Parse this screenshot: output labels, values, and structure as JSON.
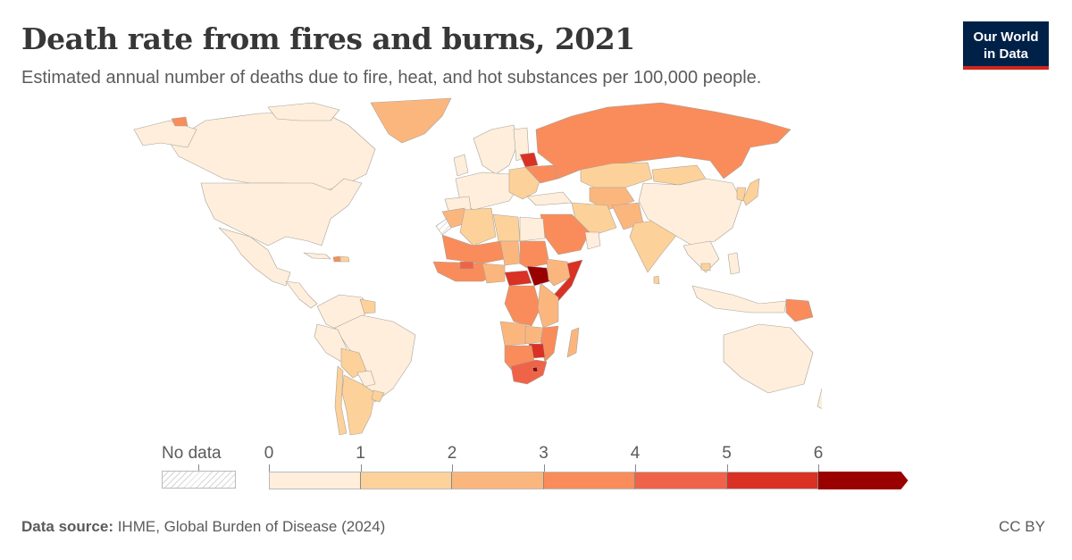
{
  "header": {
    "title": "Death rate from fires and burns, 2021",
    "subtitle": "Estimated annual number of deaths due to fire, heat, and hot substances per 100,000 people.",
    "logo_line1": "Our World",
    "logo_line2": "in Data"
  },
  "colors": {
    "brand_navy": "#002147",
    "brand_red": "#ce261e",
    "bins": [
      "#feeedb",
      "#fdd19a",
      "#fbb67e",
      "#f98c5a",
      "#ef6448",
      "#d93124",
      "#9a0000"
    ],
    "nodata": "#d6d6d6",
    "border": "#a8a39b"
  },
  "legend": {
    "nodata_label": "No data",
    "ticks": [
      "0",
      "1",
      "2",
      "3",
      "4",
      "5",
      "6"
    ],
    "bins": [
      {
        "range": "0–1",
        "color": "#feeedb"
      },
      {
        "range": "1–2",
        "color": "#fdd19a"
      },
      {
        "range": "2–3",
        "color": "#fbb67e"
      },
      {
        "range": "3–4",
        "color": "#f98c5a"
      },
      {
        "range": "4–5",
        "color": "#ef6448"
      },
      {
        "range": "5–6",
        "color": "#d93124"
      },
      {
        "range": ">6",
        "color": "#9a0000"
      }
    ]
  },
  "footer": {
    "source_label": "Data source:",
    "source_value": " IHME, Global Burden of Disease (2024)",
    "license": "CC BY"
  },
  "chart_data": {
    "type": "choropleth",
    "title": "Death rate from fires and burns, 2021",
    "subtitle": "Estimated annual number of deaths due to fire, heat, and hot substances per 100,000 people.",
    "unit": "deaths per 100,000 people",
    "year": 2021,
    "legend_bins": [
      [
        0,
        1
      ],
      [
        1,
        2
      ],
      [
        2,
        3
      ],
      [
        3,
        4
      ],
      [
        4,
        5
      ],
      [
        5,
        6
      ],
      [
        6,
        null
      ]
    ],
    "legend_ticks": [
      0,
      1,
      2,
      3,
      4,
      5,
      6
    ],
    "regions_approx": [
      {
        "region": "United States",
        "bin": "0–1"
      },
      {
        "region": "Canada",
        "bin": "0–1"
      },
      {
        "region": "Mexico",
        "bin": "0–1"
      },
      {
        "region": "Greenland",
        "bin": "2–3"
      },
      {
        "region": "Brazil",
        "bin": "0–1"
      },
      {
        "region": "Argentina",
        "bin": "1–2"
      },
      {
        "region": "Bolivia",
        "bin": "1–2"
      },
      {
        "region": "Chile",
        "bin": "1–2"
      },
      {
        "region": "Haiti",
        "bin": "3–4"
      },
      {
        "region": "Russia",
        "bin": "3–4"
      },
      {
        "region": "Belarus",
        "bin": "5–6"
      },
      {
        "region": "Western Europe",
        "bin": "0–1"
      },
      {
        "region": "China",
        "bin": "0–1"
      },
      {
        "region": "India",
        "bin": "1–2"
      },
      {
        "region": "Kazakhstan",
        "bin": "1–2"
      },
      {
        "region": "Saudi Arabia",
        "bin": "3–4"
      },
      {
        "region": "Egypt",
        "bin": "0–1"
      },
      {
        "region": "South Sudan",
        "bin": ">6"
      },
      {
        "region": "Central African Republic",
        "bin": "5–6"
      },
      {
        "region": "Somalia",
        "bin": "5–6"
      },
      {
        "region": "Zimbabwe",
        "bin": "5–6"
      },
      {
        "region": "South Africa",
        "bin": "4–5"
      },
      {
        "region": "Lesotho",
        "bin": ">6"
      },
      {
        "region": "DR Congo",
        "bin": "3–4"
      },
      {
        "region": "Ethiopia",
        "bin": "2–3"
      },
      {
        "region": "Madagascar",
        "bin": "2–3"
      },
      {
        "region": "Papua New Guinea",
        "bin": "3–4"
      },
      {
        "region": "Australia",
        "bin": "0–1"
      },
      {
        "region": "Japan",
        "bin": "1–2"
      },
      {
        "region": "Indonesia",
        "bin": "0–1"
      },
      {
        "region": "Western Sahara",
        "bin": "No data"
      }
    ]
  }
}
